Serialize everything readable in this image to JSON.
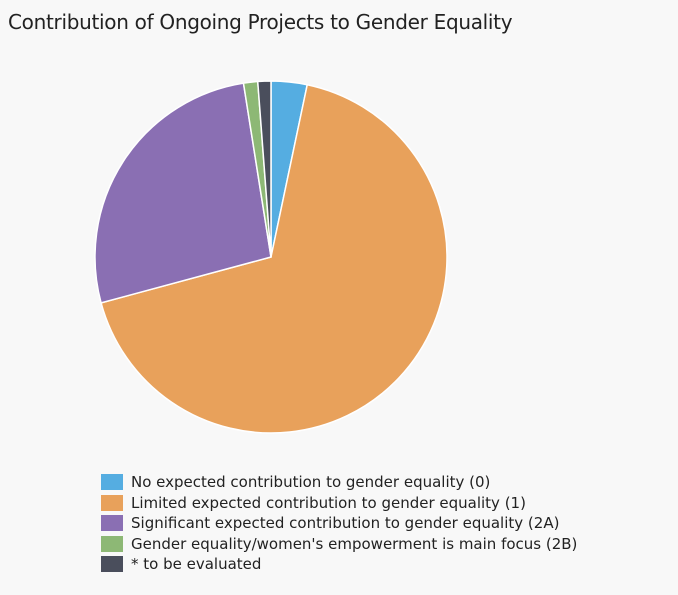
{
  "chart_data": {
    "type": "pie",
    "title": "Contribution of Ongoing Projects to Gender Equality",
    "unit": "%",
    "slices": [
      {
        "label": "No expected contribution to gender equality (0)",
        "value": 3.3,
        "color": "#55ade1"
      },
      {
        "label": "Limited expected contribution to gender equality (1)",
        "value": 67.5,
        "color": "#e8a15b"
      },
      {
        "label": "Significant expected contribution to gender equality (2A)",
        "value": 26.7,
        "color": "#8a6fb3"
      },
      {
        "label": "Gender equality/women's empowerment is main focus (2B)",
        "value": 1.3,
        "color": "#8db875"
      },
      {
        "label": "* to be evaluated",
        "value": 1.2,
        "color": "#4a4e5c"
      }
    ],
    "legend_position": "bottom-left"
  }
}
